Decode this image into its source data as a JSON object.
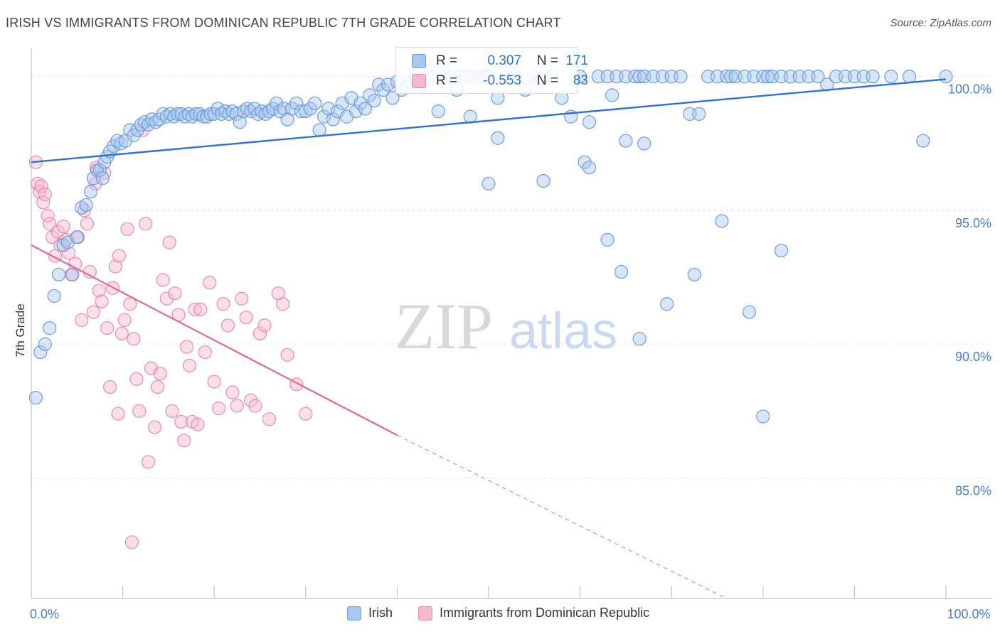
{
  "header": {
    "title": "IRISH VS IMMIGRANTS FROM DOMINICAN REPUBLIC 7TH GRADE CORRELATION CHART",
    "source": "Source: ZipAtlas.com"
  },
  "watermark": {
    "zip": "ZIP",
    "atlas": "atlas"
  },
  "colors": {
    "irish_fill": "#a8c8f0",
    "irish_stroke": "#6b9be0",
    "irish_line": "#2f72d0",
    "dom_fill": "#f6b8cc",
    "dom_stroke": "#e88aaa",
    "dom_line": "#e0709a",
    "tick_label": "#4a7cc9",
    "grid": "#e3e3e3"
  },
  "stats": {
    "irish": {
      "r_label": "R =",
      "r_value": "0.307",
      "n_label": "N =",
      "n_value": "171"
    },
    "dom": {
      "r_label": "R =",
      "r_value": "-0.553",
      "n_label": "N =",
      "n_value": "83"
    }
  },
  "legend": {
    "irish": "Irish",
    "dom": "Immigrants from Dominican Republic"
  },
  "chart_data": {
    "type": "scatter",
    "title": "IRISH VS IMMIGRANTS FROM DOMINICAN REPUBLIC 7TH GRADE CORRELATION CHART",
    "ylabel": "7th Grade",
    "xlim": [
      0,
      100
    ],
    "ylim": [
      80.5,
      101.0
    ],
    "x_tick_labels": [
      {
        "value": 0,
        "label": "0.0%"
      },
      {
        "value": 100,
        "label": "100.0%"
      }
    ],
    "y_tick_labels": [
      {
        "value": 100,
        "label": "100.0%"
      },
      {
        "value": 95,
        "label": "95.0%"
      },
      {
        "value": 90,
        "label": "90.0%"
      },
      {
        "value": 85,
        "label": "85.0%"
      }
    ],
    "grid": "horizontal dashed",
    "legend_position": "bottom",
    "series": [
      {
        "name": "Irish",
        "trend": {
          "x0": 0,
          "y0": 96.8,
          "x1": 100,
          "y1": 99.9
        },
        "points": [
          [
            0.5,
            88.0
          ],
          [
            1.0,
            89.7
          ],
          [
            1.5,
            90.0
          ],
          [
            2.0,
            90.6
          ],
          [
            2.5,
            91.8
          ],
          [
            3.0,
            92.6
          ],
          [
            3.5,
            93.7
          ],
          [
            4.0,
            93.8
          ],
          [
            4.5,
            92.6
          ],
          [
            5.0,
            94.0
          ],
          [
            5.5,
            95.1
          ],
          [
            6.0,
            95.2
          ],
          [
            6.5,
            95.7
          ],
          [
            6.8,
            96.2
          ],
          [
            7.2,
            96.5
          ],
          [
            7.5,
            96.5
          ],
          [
            7.8,
            96.2
          ],
          [
            8.0,
            96.8
          ],
          [
            8.3,
            97.0
          ],
          [
            8.6,
            97.2
          ],
          [
            9.0,
            97.4
          ],
          [
            9.4,
            97.6
          ],
          [
            9.8,
            97.5
          ],
          [
            10.3,
            97.6
          ],
          [
            10.8,
            98.0
          ],
          [
            11.2,
            97.8
          ],
          [
            11.6,
            98.0
          ],
          [
            12.0,
            98.2
          ],
          [
            12.4,
            98.3
          ],
          [
            12.8,
            98.2
          ],
          [
            13.2,
            98.4
          ],
          [
            13.6,
            98.3
          ],
          [
            14.0,
            98.4
          ],
          [
            14.4,
            98.6
          ],
          [
            14.8,
            98.5
          ],
          [
            15.2,
            98.6
          ],
          [
            15.6,
            98.5
          ],
          [
            16.0,
            98.6
          ],
          [
            16.4,
            98.6
          ],
          [
            16.8,
            98.5
          ],
          [
            17.2,
            98.6
          ],
          [
            17.6,
            98.5
          ],
          [
            18.0,
            98.6
          ],
          [
            18.4,
            98.6
          ],
          [
            18.8,
            98.5
          ],
          [
            19.2,
            98.5
          ],
          [
            19.6,
            98.6
          ],
          [
            20.0,
            98.6
          ],
          [
            20.4,
            98.8
          ],
          [
            20.8,
            98.6
          ],
          [
            21.2,
            98.7
          ],
          [
            21.6,
            98.6
          ],
          [
            22.0,
            98.7
          ],
          [
            22.4,
            98.6
          ],
          [
            22.8,
            98.3
          ],
          [
            23.2,
            98.7
          ],
          [
            23.6,
            98.8
          ],
          [
            24.0,
            98.7
          ],
          [
            24.4,
            98.8
          ],
          [
            24.8,
            98.6
          ],
          [
            25.2,
            98.7
          ],
          [
            25.6,
            98.6
          ],
          [
            26.0,
            98.7
          ],
          [
            26.4,
            98.8
          ],
          [
            26.8,
            99.0
          ],
          [
            27.2,
            98.7
          ],
          [
            27.6,
            98.8
          ],
          [
            28.0,
            98.4
          ],
          [
            28.5,
            98.8
          ],
          [
            29.0,
            99.0
          ],
          [
            29.5,
            98.7
          ],
          [
            30.0,
            98.7
          ],
          [
            30.5,
            98.8
          ],
          [
            31.0,
            99.0
          ],
          [
            31.5,
            98.0
          ],
          [
            32.0,
            98.5
          ],
          [
            32.5,
            98.8
          ],
          [
            33.0,
            98.4
          ],
          [
            33.5,
            98.7
          ],
          [
            34.0,
            99.0
          ],
          [
            34.5,
            98.5
          ],
          [
            35.0,
            99.2
          ],
          [
            35.5,
            98.7
          ],
          [
            36.0,
            99.0
          ],
          [
            36.5,
            98.8
          ],
          [
            37.0,
            99.3
          ],
          [
            37.5,
            99.1
          ],
          [
            38.0,
            99.7
          ],
          [
            38.5,
            99.5
          ],
          [
            39.0,
            99.7
          ],
          [
            39.5,
            99.2
          ],
          [
            40.0,
            99.8
          ],
          [
            40.5,
            99.5
          ],
          [
            41.0,
            99.6
          ],
          [
            41.5,
            99.8
          ],
          [
            42.0,
            100.0
          ],
          [
            42.5,
            99.6
          ],
          [
            43.0,
            99.8
          ],
          [
            43.5,
            100.0
          ],
          [
            44.0,
            100.0
          ],
          [
            44.5,
            98.7
          ],
          [
            45.0,
            100.0
          ],
          [
            45.5,
            99.8
          ],
          [
            46.0,
            100.0
          ],
          [
            46.5,
            99.5
          ],
          [
            47.0,
            100.0
          ],
          [
            47.5,
            100.0
          ],
          [
            48.0,
            98.5
          ],
          [
            48.5,
            100.0
          ],
          [
            49.0,
            100.0
          ],
          [
            49.5,
            100.0
          ],
          [
            50.0,
            100.0
          ],
          [
            51.0,
            99.2
          ],
          [
            52.0,
            100.0
          ],
          [
            53.0,
            100.0
          ],
          [
            54.0,
            99.5
          ],
          [
            55.0,
            100.0
          ],
          [
            55.5,
            99.8
          ],
          [
            56.0,
            100.0
          ],
          [
            57.0,
            100.0
          ],
          [
            58.0,
            99.2
          ],
          [
            59.0,
            98.5
          ],
          [
            60.0,
            100.0
          ],
          [
            61.0,
            98.3
          ],
          [
            62.0,
            100.0
          ],
          [
            63.0,
            100.0
          ],
          [
            63.5,
            99.3
          ],
          [
            64.0,
            100.0
          ],
          [
            65.0,
            100.0
          ],
          [
            66.0,
            100.0
          ],
          [
            66.5,
            100.0
          ],
          [
            67.0,
            100.0
          ],
          [
            68.0,
            100.0
          ],
          [
            69.0,
            100.0
          ],
          [
            70.0,
            100.0
          ],
          [
            71.0,
            100.0
          ],
          [
            72.0,
            98.6
          ],
          [
            73.0,
            98.6
          ],
          [
            74.0,
            100.0
          ],
          [
            75.0,
            100.0
          ],
          [
            76.0,
            100.0
          ],
          [
            76.5,
            100.0
          ],
          [
            77.0,
            100.0
          ],
          [
            78.0,
            100.0
          ],
          [
            79.0,
            100.0
          ],
          [
            80.0,
            100.0
          ],
          [
            80.5,
            100.0
          ],
          [
            81.0,
            100.0
          ],
          [
            82.0,
            100.0
          ],
          [
            83.0,
            100.0
          ],
          [
            84.0,
            100.0
          ],
          [
            85.0,
            100.0
          ],
          [
            86.0,
            100.0
          ],
          [
            87.0,
            99.7
          ],
          [
            88.0,
            100.0
          ],
          [
            89.0,
            100.0
          ],
          [
            90.0,
            100.0
          ],
          [
            91.0,
            100.0
          ],
          [
            92.0,
            100.0
          ],
          [
            94.0,
            100.0
          ],
          [
            96.0,
            100.0
          ],
          [
            97.5,
            97.6
          ],
          [
            100.0,
            100.0
          ],
          [
            51.0,
            97.7
          ],
          [
            60.5,
            96.8
          ],
          [
            61.0,
            96.6
          ],
          [
            56.0,
            96.1
          ],
          [
            50.0,
            96.0
          ],
          [
            65.0,
            97.6
          ],
          [
            67.0,
            97.5
          ],
          [
            63.0,
            93.9
          ],
          [
            75.5,
            94.6
          ],
          [
            64.5,
            92.7
          ],
          [
            72.5,
            92.6
          ],
          [
            82.0,
            93.5
          ],
          [
            69.5,
            91.5
          ],
          [
            78.5,
            91.2
          ],
          [
            66.5,
            90.2
          ],
          [
            80.0,
            87.3
          ]
        ]
      },
      {
        "name": "Immigrants from Dominican Republic",
        "trend": {
          "x0": 0,
          "y0": 93.7,
          "x1": 40,
          "y1": 86.6
        },
        "trend_dashed_to": {
          "x": 76,
          "y": 80.5
        },
        "points": [
          [
            0.5,
            96.8
          ],
          [
            0.7,
            96.0
          ],
          [
            0.9,
            95.7
          ],
          [
            1.1,
            95.9
          ],
          [
            1.3,
            95.3
          ],
          [
            1.5,
            95.6
          ],
          [
            1.8,
            94.8
          ],
          [
            2.0,
            94.5
          ],
          [
            2.3,
            94.0
          ],
          [
            2.6,
            93.3
          ],
          [
            2.9,
            94.2
          ],
          [
            3.2,
            93.7
          ],
          [
            3.5,
            94.4
          ],
          [
            3.8,
            93.9
          ],
          [
            4.1,
            93.4
          ],
          [
            4.4,
            92.6
          ],
          [
            4.8,
            93.0
          ],
          [
            5.1,
            94.0
          ],
          [
            5.5,
            90.9
          ],
          [
            5.8,
            95.0
          ],
          [
            6.1,
            94.5
          ],
          [
            6.4,
            92.7
          ],
          [
            6.8,
            91.2
          ],
          [
            7.1,
            96.6
          ],
          [
            7.4,
            92.0
          ],
          [
            7.7,
            91.6
          ],
          [
            8.0,
            96.4
          ],
          [
            8.3,
            90.6
          ],
          [
            8.6,
            88.4
          ],
          [
            8.9,
            92.1
          ],
          [
            9.2,
            92.9
          ],
          [
            9.6,
            93.3
          ],
          [
            9.9,
            90.4
          ],
          [
            10.2,
            90.9
          ],
          [
            10.5,
            94.3
          ],
          [
            10.8,
            91.5
          ],
          [
            11.2,
            90.2
          ],
          [
            11.5,
            88.7
          ],
          [
            11.8,
            87.5
          ],
          [
            12.2,
            98.0
          ],
          [
            12.5,
            94.5
          ],
          [
            12.8,
            85.6
          ],
          [
            13.1,
            89.1
          ],
          [
            13.5,
            86.9
          ],
          [
            13.8,
            88.4
          ],
          [
            14.1,
            88.9
          ],
          [
            14.4,
            92.4
          ],
          [
            14.8,
            91.7
          ],
          [
            15.1,
            93.8
          ],
          [
            15.4,
            87.5
          ],
          [
            15.7,
            91.9
          ],
          [
            16.1,
            91.1
          ],
          [
            16.4,
            87.1
          ],
          [
            16.7,
            86.4
          ],
          [
            17.0,
            89.9
          ],
          [
            17.3,
            89.2
          ],
          [
            17.6,
            87.1
          ],
          [
            17.9,
            91.3
          ],
          [
            18.2,
            87.0
          ],
          [
            18.5,
            91.3
          ],
          [
            19.0,
            89.7
          ],
          [
            19.5,
            92.3
          ],
          [
            20.0,
            88.6
          ],
          [
            20.5,
            87.6
          ],
          [
            21.0,
            91.5
          ],
          [
            21.5,
            90.7
          ],
          [
            22.0,
            88.2
          ],
          [
            22.5,
            87.7
          ],
          [
            23.0,
            91.7
          ],
          [
            23.5,
            91.0
          ],
          [
            24.0,
            87.9
          ],
          [
            24.5,
            87.7
          ],
          [
            25.0,
            90.4
          ],
          [
            25.5,
            90.7
          ],
          [
            26.0,
            87.2
          ],
          [
            27.0,
            91.9
          ],
          [
            27.5,
            91.5
          ],
          [
            28.0,
            89.6
          ],
          [
            29.0,
            88.5
          ],
          [
            30.0,
            87.4
          ],
          [
            11.0,
            82.6
          ],
          [
            7.0,
            96.0
          ],
          [
            9.5,
            87.4
          ]
        ]
      }
    ]
  }
}
